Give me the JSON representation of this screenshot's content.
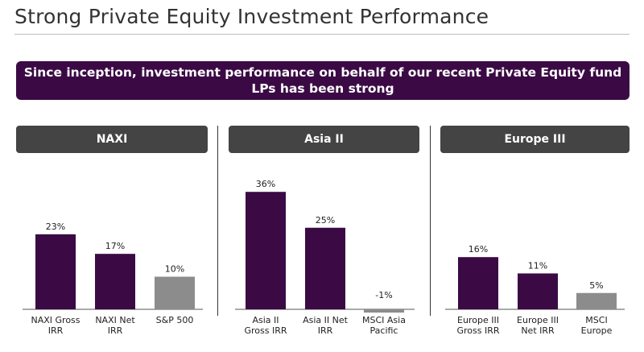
{
  "page_title": "Strong Private Equity Investment Performance",
  "banner": {
    "line1": "Since inception, investment performance on behalf of our recent Private Equity fund",
    "line2": "LPs has been strong"
  },
  "colors": {
    "fund_bar": "#3b0a45",
    "benchmark_bar": "#8c8c8c",
    "banner_bg": "#3b0a45",
    "header_bg": "#444444"
  },
  "chart_data": [
    {
      "type": "bar",
      "title": "NAXI",
      "categories": [
        [
          "NAXI Gross",
          "IRR"
        ],
        [
          "NAXI Net",
          "IRR"
        ],
        [
          "S&P 500"
        ]
      ],
      "values": [
        23,
        17,
        10
      ],
      "value_labels": [
        "23%",
        "17%",
        "10%"
      ],
      "bar_kind": [
        "fund",
        "fund",
        "benchmark"
      ],
      "unit": "%"
    },
    {
      "type": "bar",
      "title": "Asia II",
      "categories": [
        [
          "Asia II",
          "Gross IRR"
        ],
        [
          "Asia II Net",
          "IRR"
        ],
        [
          "MSCI Asia",
          "Pacific"
        ]
      ],
      "values": [
        36,
        25,
        -1
      ],
      "value_labels": [
        "36%",
        "25%",
        "-1%"
      ],
      "bar_kind": [
        "fund",
        "fund",
        "benchmark"
      ],
      "unit": "%"
    },
    {
      "type": "bar",
      "title": "Europe III",
      "categories": [
        [
          "Europe III",
          "Gross IRR"
        ],
        [
          "Europe III",
          "Net IRR"
        ],
        [
          "MSCI",
          "Europe"
        ]
      ],
      "values": [
        16,
        11,
        5
      ],
      "value_labels": [
        "16%",
        "11%",
        "5%"
      ],
      "bar_kind": [
        "fund",
        "fund",
        "benchmark"
      ],
      "unit": "%"
    }
  ]
}
